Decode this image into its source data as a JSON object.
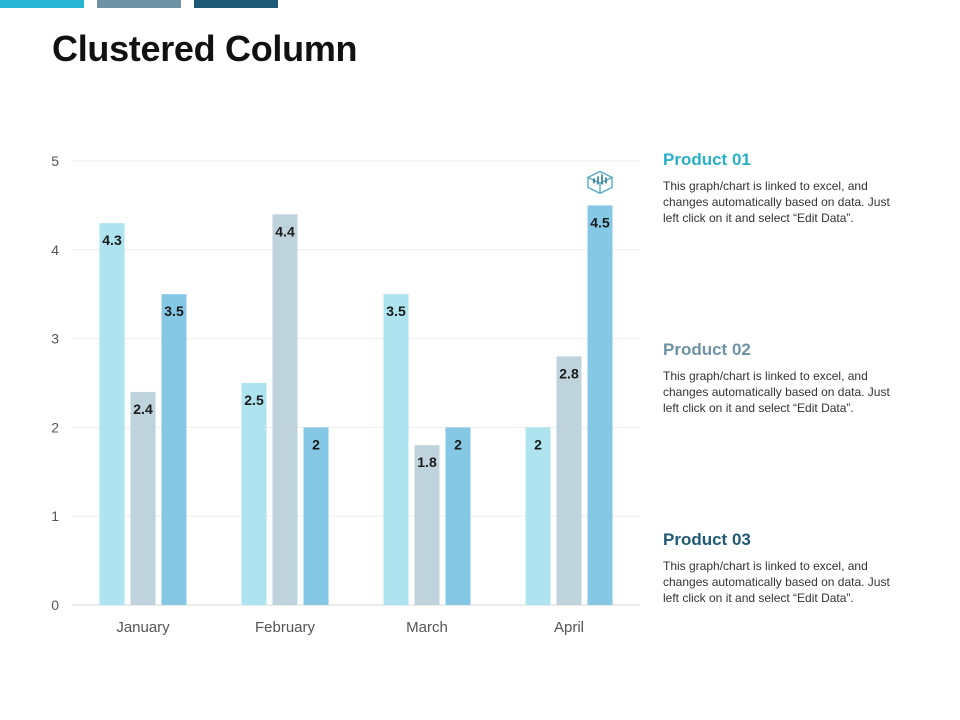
{
  "page": {
    "title": "Clustered Column",
    "top_bar_colors": [
      "#28b6d4",
      "#6e93a4",
      "#1e5a73"
    ]
  },
  "legend": [
    {
      "name": "Product 01",
      "color": "#29afc9",
      "description": "This graph/chart is linked to excel, and changes automatically based on data. Just left click on it and select “Edit Data”."
    },
    {
      "name": "Product 02",
      "color": "#6e93a4",
      "description": "This graph/chart is linked to excel, and changes automatically based on data. Just left click on it and select “Edit Data”."
    },
    {
      "name": "Product 03",
      "color": "#1e5a73",
      "description": "This graph/chart is linked to excel, and changes automatically based on data. Just left click on it and select “Edit Data”."
    }
  ],
  "chart_data": {
    "type": "bar",
    "categories": [
      "January",
      "February",
      "March",
      "April"
    ],
    "series": [
      {
        "name": "Product 01",
        "color": "#ade4ef",
        "values": [
          4.3,
          2.5,
          3.5,
          2
        ]
      },
      {
        "name": "Product 02",
        "color": "#bfd3dc",
        "values": [
          2.4,
          4.4,
          1.8,
          2.8
        ]
      },
      {
        "name": "Product 03",
        "color": "#85c8e6",
        "values": [
          3.5,
          2,
          2,
          4.5
        ]
      }
    ],
    "ylim": [
      0,
      5
    ],
    "yticks": [
      "0",
      "1",
      "2",
      "3",
      "4",
      "5"
    ],
    "grid": true,
    "legend_position": "right",
    "icon": "chart-growth-icon"
  }
}
